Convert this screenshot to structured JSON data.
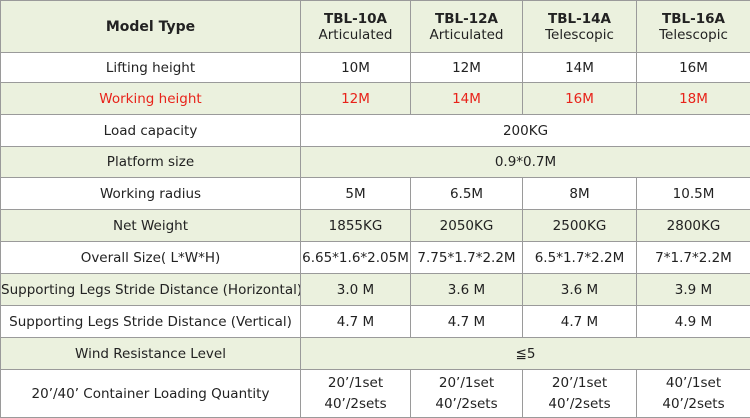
{
  "table": {
    "header": {
      "label": "Model Type",
      "models": [
        {
          "name": "TBL-10A",
          "type": "Articulated"
        },
        {
          "name": "TBL-12A",
          "type": "Articulated"
        },
        {
          "name": "TBL-14A",
          "type": "Telescopic"
        },
        {
          "name": "TBL-16A",
          "type": "Telescopic"
        }
      ]
    },
    "rows": [
      {
        "label": "Lifting height",
        "values": [
          "10M",
          "12M",
          "14M",
          "16M"
        ]
      },
      {
        "label": "Working height",
        "values": [
          "12M",
          "14M",
          "16M",
          "18M"
        ],
        "color": "#e8231a"
      },
      {
        "label": "Load capacity",
        "values": [
          "200KG"
        ]
      },
      {
        "label": "Platform size",
        "values": [
          "0.9*0.7M"
        ]
      },
      {
        "label": "Working radius",
        "values": [
          "5M",
          "6.5M",
          "8M",
          "10.5M"
        ]
      },
      {
        "label": "Net Weight",
        "values": [
          "1855KG",
          "2050KG",
          "2500KG",
          "2800KG"
        ]
      },
      {
        "label": "Overall Size( L*W*H)",
        "values": [
          "6.65*1.6*2.05M",
          "7.75*1.7*2.2M",
          "6.5*1.7*2.2M",
          "7*1.7*2.2M"
        ]
      },
      {
        "label": "Supporting Legs Stride Distance (Horizontal)",
        "values": [
          "3.0 M",
          "3.6 M",
          "3.6 M",
          "3.9 M"
        ]
      },
      {
        "label": "Supporting Legs Stride Distance (Vertical)",
        "values": [
          "4.7 M",
          "4.7 M",
          "4.7 M",
          "4.9 M"
        ]
      },
      {
        "label": "Wind Resistance Level",
        "values": [
          "≦5"
        ]
      },
      {
        "label": "20’/40’ Container Loading Quantity",
        "values": [
          [
            "20’/1set",
            "40’/2sets"
          ],
          [
            "20’/1set",
            "40’/2sets"
          ],
          [
            "20’/1set",
            "40’/2sets"
          ],
          [
            "40’/1set",
            "40’/2sets"
          ]
        ]
      }
    ]
  }
}
